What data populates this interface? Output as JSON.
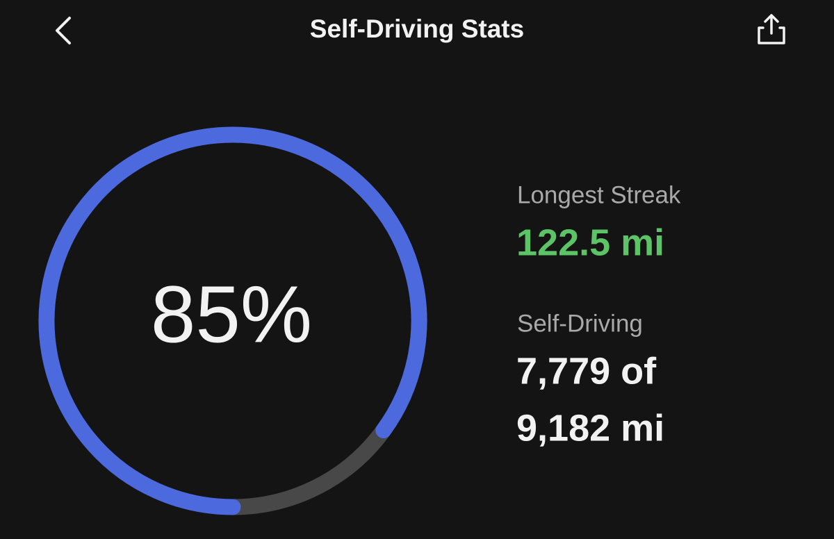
{
  "header": {
    "title": "Self-Driving Stats"
  },
  "ring": {
    "value": 85,
    "label": "85%",
    "color": "#4c69de",
    "track_color": "#484848"
  },
  "stats": [
    {
      "label": "Longest Streak",
      "lines": [
        "122.5 mi"
      ],
      "color": "#5cc466"
    },
    {
      "label": "Self-Driving",
      "lines": [
        "7,779 of",
        "9,182 mi"
      ],
      "color": "#f2f2f2"
    }
  ]
}
